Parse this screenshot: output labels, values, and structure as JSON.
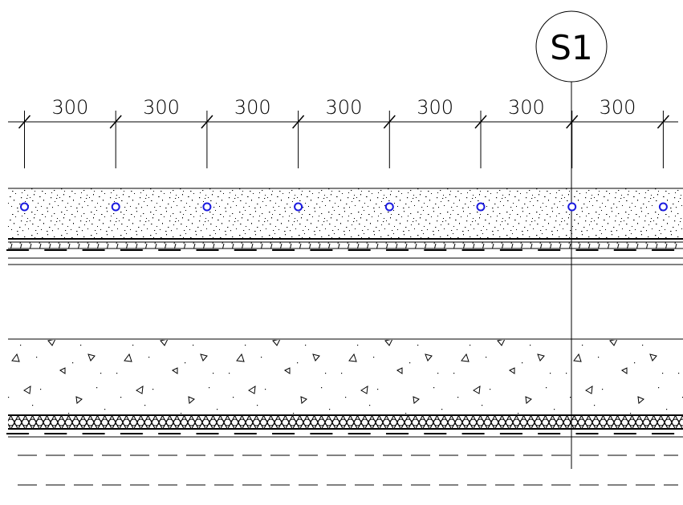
{
  "dimensions": [
    "300",
    "300",
    "300",
    "300",
    "300",
    "300",
    "300"
  ],
  "section_marker": "S1"
}
